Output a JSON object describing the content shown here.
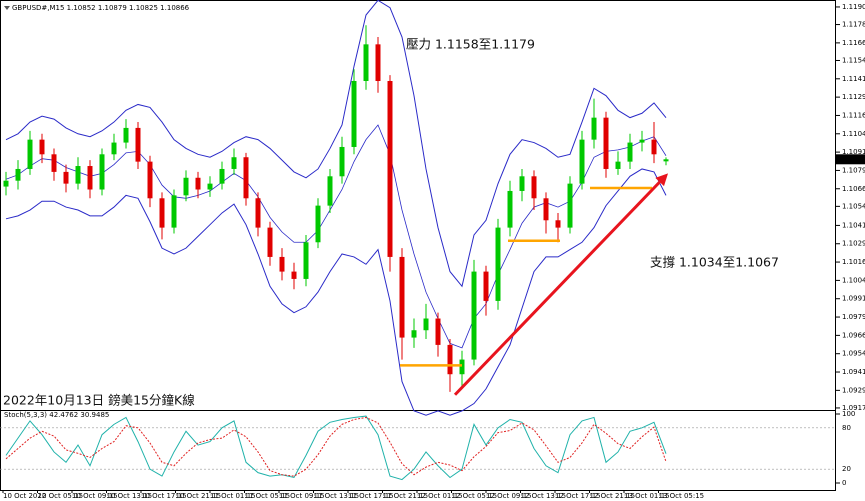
{
  "chart_data": [
    {
      "type": "candlestick",
      "title": "GBPUSD#,M15  1.10852 1.10879 1.10825 1.10866",
      "annotations": [
        "壓力 1.1158至1.1179",
        "支撐 1.1034至1.1067",
        "2022年10月13日 鎊美15分鐘K線"
      ],
      "ylim": [
        1.09156,
        1.11932
      ],
      "yticks": [
        1.11905,
        1.11785,
        {
          "value": 1.1166,
          "label": "1.11660"
        },
        {
          "value": 1.1154,
          "label": "1.11540"
        },
        1.11415,
        {
          "value": 1.1129,
          "label": "1.11290"
        },
        1.11165,
        {
          "value": 1.1104,
          "label": "1.11040"
        },
        1.10915,
        {
          "value": 1.1079,
          "label": "1.10790"
        },
        1.10665,
        1.10545,
        1.10415,
        {
          "value": 1.1029,
          "label": "1.10290"
        },
        1.10165,
        {
          "value": 1.1004,
          "label": "1.10040"
        },
        1.09915,
        {
          "value": 1.0979,
          "label": "1.09790"
        },
        1.09665,
        {
          "value": 1.0954,
          "label": "1.09540"
        },
        1.09415,
        {
          "value": 1.0929,
          "label": "1.09290"
        },
        {
          "value": 1.0917,
          "label": "1.09170"
        }
      ],
      "time_labels": [
        "10 Oct 2022",
        "10 Oct 05:15",
        "10 Oct 09:15",
        "10 Oct 13:15",
        "10 Oct 17:15",
        "10 Oct 21:15",
        "11 Oct 01:15",
        "11 Oct 05:15",
        "11 Oct 09:15",
        "11 Oct 13:15",
        "11 Oct 17:15",
        "11 Oct 21:15",
        "12 Oct 01:15",
        "12 Oct 05:15",
        "12 Oct 09:15",
        "12 Oct 13:15",
        "12 Oct 17:15",
        "12 Oct 21:15",
        "13 Oct 01:15",
        "13 Oct 05:15"
      ],
      "up_color": "#00c800",
      "down_color": "#e00000",
      "band_color": "#2a2ac8",
      "open": [
        1.1068,
        1.1072,
        1.108,
        1.11,
        1.109,
        1.1078,
        1.107,
        1.1082,
        1.1066,
        1.109,
        1.1098,
        1.1108,
        1.1085,
        1.106,
        1.104,
        1.1062,
        1.1074,
        1.1066,
        1.107,
        1.108,
        1.1088,
        1.106,
        1.104,
        1.102,
        1.101,
        1.1005,
        1.103,
        1.1055,
        1.1075,
        1.1095,
        1.114,
        1.1165,
        1.114,
        1.102,
        1.0965,
        1.097,
        1.0978,
        1.096,
        1.094,
        1.095,
        1.101,
        1.099,
        1.104,
        1.1065,
        1.1075,
        1.106,
        1.1045,
        1.104,
        1.107,
        1.11,
        1.1115,
        1.108,
        1.1085,
        1.1098,
        1.11,
        1.10852
      ],
      "high": [
        1.1078,
        1.1086,
        1.1106,
        1.1104,
        1.1094,
        1.1083,
        1.1088,
        1.1086,
        1.1094,
        1.1104,
        1.1114,
        1.1112,
        1.1089,
        1.1064,
        1.1066,
        1.1079,
        1.1078,
        1.1075,
        1.1085,
        1.1094,
        1.1091,
        1.1064,
        1.1044,
        1.1026,
        1.1016,
        1.1035,
        1.106,
        1.108,
        1.1102,
        1.1148,
        1.1178,
        1.117,
        1.1144,
        1.1026,
        1.0978,
        1.0988,
        1.0982,
        1.0964,
        1.0956,
        1.1018,
        1.1014,
        1.1046,
        1.1072,
        1.108,
        1.1079,
        1.1064,
        1.105,
        1.1075,
        1.1106,
        1.1128,
        1.1119,
        1.1092,
        1.1104,
        1.1106,
        1.1112,
        1.10879
      ],
      "low": [
        1.1062,
        1.1066,
        1.1076,
        1.1084,
        1.1072,
        1.1064,
        1.1066,
        1.106,
        1.1062,
        1.1086,
        1.1094,
        1.108,
        1.1054,
        1.1032,
        1.1036,
        1.1058,
        1.106,
        1.1061,
        1.1066,
        1.1076,
        1.1055,
        1.1034,
        1.1014,
        1.1004,
        1.0998,
        1.1,
        1.1026,
        1.105,
        1.107,
        1.109,
        1.1134,
        1.1132,
        1.101,
        1.095,
        1.0958,
        1.0964,
        1.0952,
        1.0928,
        1.0932,
        1.0946,
        1.098,
        1.0984,
        1.1034,
        1.1058,
        1.1052,
        1.1036,
        1.103,
        1.1036,
        1.1066,
        1.1094,
        1.1074,
        1.1076,
        1.108,
        1.1092,
        1.1084,
        1.10825
      ],
      "close": [
        1.1072,
        1.108,
        1.11,
        1.109,
        1.1078,
        1.107,
        1.1082,
        1.1066,
        1.109,
        1.1098,
        1.1108,
        1.1085,
        1.106,
        1.104,
        1.1062,
        1.1074,
        1.1066,
        1.107,
        1.108,
        1.1088,
        1.106,
        1.104,
        1.102,
        1.101,
        1.1005,
        1.103,
        1.1055,
        1.1075,
        1.1095,
        1.114,
        1.1165,
        1.114,
        1.102,
        1.0965,
        1.097,
        1.0978,
        1.096,
        1.094,
        1.095,
        1.101,
        1.099,
        1.104,
        1.1065,
        1.1075,
        1.106,
        1.1045,
        1.104,
        1.107,
        1.11,
        1.1115,
        1.108,
        1.1085,
        1.1098,
        1.11,
        1.109,
        1.10866
      ],
      "bands": {
        "upper": [
          1.11,
          1.1104,
          1.1112,
          1.1116,
          1.1114,
          1.1108,
          1.1104,
          1.1102,
          1.1106,
          1.1112,
          1.112,
          1.1124,
          1.1122,
          1.1112,
          1.11,
          1.1094,
          1.109,
          1.1088,
          1.1092,
          1.1098,
          1.1102,
          1.11,
          1.1094,
          1.1086,
          1.1078,
          1.1074,
          1.108,
          1.1094,
          1.111,
          1.115,
          1.1185,
          1.1195,
          1.119,
          1.117,
          1.113,
          1.108,
          1.104,
          1.101,
          1.1,
          1.1035,
          1.1045,
          1.107,
          1.109,
          1.11,
          1.1098,
          1.1094,
          1.1088,
          1.109,
          1.1112,
          1.1135,
          1.113,
          1.112,
          1.1115,
          1.1118,
          1.1125,
          1.1115
        ],
        "middle": [
          1.1073,
          1.1076,
          1.1082,
          1.1087,
          1.1086,
          1.1081,
          1.1078,
          1.1075,
          1.1077,
          1.1083,
          1.1091,
          1.1092,
          1.1083,
          1.1069,
          1.1061,
          1.106,
          1.1062,
          1.1065,
          1.1071,
          1.1077,
          1.1072,
          1.1061,
          1.1047,
          1.1037,
          1.103,
          1.103,
          1.1038,
          1.1052,
          1.1066,
          1.1085,
          1.11,
          1.111,
          1.109,
          1.1052,
          1.1022,
          1.0996,
          1.0978,
          1.0961,
          1.0958,
          1.0978,
          1.0988,
          1.1008,
          1.1025,
          1.1043,
          1.1054,
          1.1057,
          1.1054,
          1.1058,
          1.1071,
          1.1088,
          1.1092,
          1.1093,
          1.1095,
          1.1099,
          1.1102,
          1.1089
        ],
        "lower": [
          1.1046,
          1.1048,
          1.1052,
          1.1058,
          1.1058,
          1.1054,
          1.1052,
          1.1048,
          1.1048,
          1.1054,
          1.1062,
          1.106,
          1.1044,
          1.1026,
          1.1022,
          1.1026,
          1.1034,
          1.1042,
          1.105,
          1.1056,
          1.1042,
          1.1022,
          1.1,
          1.0988,
          1.0982,
          1.0986,
          1.0996,
          1.101,
          1.1022,
          1.102,
          1.1015,
          1.1025,
          1.099,
          1.0935,
          1.0915,
          1.0912,
          1.0915,
          1.0912,
          1.0915,
          1.092,
          1.093,
          1.0945,
          1.096,
          1.0985,
          1.101,
          1.102,
          1.102,
          1.1025,
          1.103,
          1.104,
          1.1055,
          1.1065,
          1.1075,
          1.108,
          1.1078,
          1.1062
        ]
      },
      "levels": [
        1.0946,
        1.1031,
        1.1067
      ],
      "level_color": "#ffa500",
      "trend": [
        1.0926,
        1.1077
      ],
      "trend_color": "#e8141e"
    },
    {
      "type": "line",
      "title": "Stoch(5,3,3) 42.4762 30.9485",
      "ylim": [
        0,
        100
      ],
      "yticks": [
        100,
        80,
        20,
        0
      ],
      "series": [
        {
          "color": "#20b2aa",
          "values": [
            40,
            65,
            90,
            70,
            45,
            30,
            55,
            25,
            70,
            85,
            95,
            60,
            20,
            10,
            45,
            75,
            55,
            60,
            80,
            90,
            30,
            15,
            10,
            12,
            8,
            40,
            75,
            88,
            92,
            95,
            97,
            70,
            10,
            5,
            20,
            45,
            25,
            8,
            20,
            85,
            55,
            80,
            92,
            88,
            50,
            25,
            15,
            70,
            90,
            95,
            30,
            45,
            75,
            80,
            88,
            42.4762
          ]
        },
        {
          "color": "#e02020",
          "values": [
            35,
            50,
            65,
            75,
            68,
            48,
            43,
            37,
            50,
            60,
            83,
            80,
            58,
            30,
            25,
            43,
            58,
            63,
            65,
            77,
            67,
            45,
            18,
            12,
            10,
            20,
            41,
            68,
            85,
            92,
            95,
            87,
            59,
            28,
            12,
            23,
            30,
            26,
            18,
            38,
            53,
            73,
            76,
            87,
            77,
            54,
            30,
            37,
            58,
            85,
            72,
            57,
            50,
            67,
            81,
            30.9485
          ]
        }
      ]
    }
  ]
}
